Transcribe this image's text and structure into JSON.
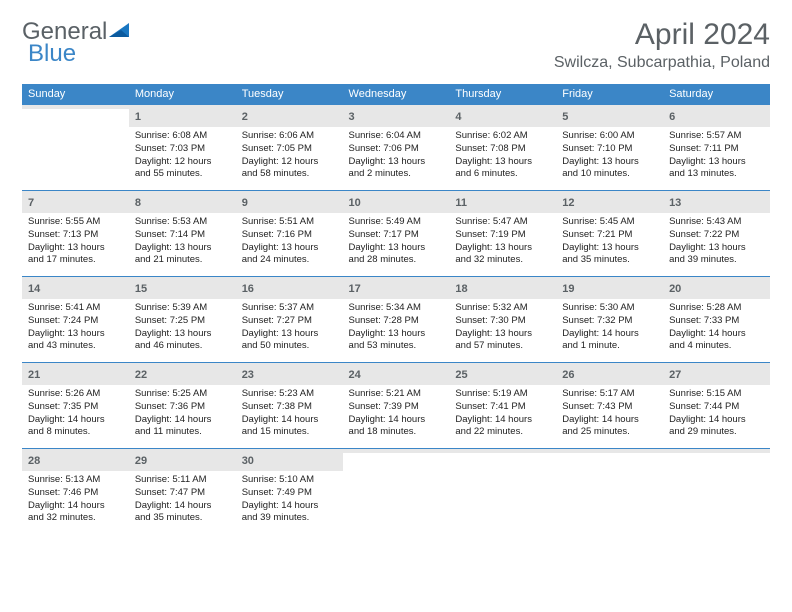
{
  "logo": {
    "text1": "General",
    "text2": "Blue"
  },
  "title": "April 2024",
  "location": "Swilcza, Subcarpathia, Poland",
  "colors": {
    "header_bg": "#3b86c7",
    "header_text": "#ffffff",
    "daynum_bg": "#e7e7e7",
    "row_border": "#3b86c7",
    "text": "#222222",
    "title_color": "#5b6165"
  },
  "weekdays": [
    "Sunday",
    "Monday",
    "Tuesday",
    "Wednesday",
    "Thursday",
    "Friday",
    "Saturday"
  ],
  "weeks": [
    [
      {
        "day": "",
        "sunrise": "",
        "sunset": "",
        "daylight": ""
      },
      {
        "day": "1",
        "sunrise": "6:08 AM",
        "sunset": "7:03 PM",
        "daylight": "12 hours and 55 minutes."
      },
      {
        "day": "2",
        "sunrise": "6:06 AM",
        "sunset": "7:05 PM",
        "daylight": "12 hours and 58 minutes."
      },
      {
        "day": "3",
        "sunrise": "6:04 AM",
        "sunset": "7:06 PM",
        "daylight": "13 hours and 2 minutes."
      },
      {
        "day": "4",
        "sunrise": "6:02 AM",
        "sunset": "7:08 PM",
        "daylight": "13 hours and 6 minutes."
      },
      {
        "day": "5",
        "sunrise": "6:00 AM",
        "sunset": "7:10 PM",
        "daylight": "13 hours and 10 minutes."
      },
      {
        "day": "6",
        "sunrise": "5:57 AM",
        "sunset": "7:11 PM",
        "daylight": "13 hours and 13 minutes."
      }
    ],
    [
      {
        "day": "7",
        "sunrise": "5:55 AM",
        "sunset": "7:13 PM",
        "daylight": "13 hours and 17 minutes."
      },
      {
        "day": "8",
        "sunrise": "5:53 AM",
        "sunset": "7:14 PM",
        "daylight": "13 hours and 21 minutes."
      },
      {
        "day": "9",
        "sunrise": "5:51 AM",
        "sunset": "7:16 PM",
        "daylight": "13 hours and 24 minutes."
      },
      {
        "day": "10",
        "sunrise": "5:49 AM",
        "sunset": "7:17 PM",
        "daylight": "13 hours and 28 minutes."
      },
      {
        "day": "11",
        "sunrise": "5:47 AM",
        "sunset": "7:19 PM",
        "daylight": "13 hours and 32 minutes."
      },
      {
        "day": "12",
        "sunrise": "5:45 AM",
        "sunset": "7:21 PM",
        "daylight": "13 hours and 35 minutes."
      },
      {
        "day": "13",
        "sunrise": "5:43 AM",
        "sunset": "7:22 PM",
        "daylight": "13 hours and 39 minutes."
      }
    ],
    [
      {
        "day": "14",
        "sunrise": "5:41 AM",
        "sunset": "7:24 PM",
        "daylight": "13 hours and 43 minutes."
      },
      {
        "day": "15",
        "sunrise": "5:39 AM",
        "sunset": "7:25 PM",
        "daylight": "13 hours and 46 minutes."
      },
      {
        "day": "16",
        "sunrise": "5:37 AM",
        "sunset": "7:27 PM",
        "daylight": "13 hours and 50 minutes."
      },
      {
        "day": "17",
        "sunrise": "5:34 AM",
        "sunset": "7:28 PM",
        "daylight": "13 hours and 53 minutes."
      },
      {
        "day": "18",
        "sunrise": "5:32 AM",
        "sunset": "7:30 PM",
        "daylight": "13 hours and 57 minutes."
      },
      {
        "day": "19",
        "sunrise": "5:30 AM",
        "sunset": "7:32 PM",
        "daylight": "14 hours and 1 minute."
      },
      {
        "day": "20",
        "sunrise": "5:28 AM",
        "sunset": "7:33 PM",
        "daylight": "14 hours and 4 minutes."
      }
    ],
    [
      {
        "day": "21",
        "sunrise": "5:26 AM",
        "sunset": "7:35 PM",
        "daylight": "14 hours and 8 minutes."
      },
      {
        "day": "22",
        "sunrise": "5:25 AM",
        "sunset": "7:36 PM",
        "daylight": "14 hours and 11 minutes."
      },
      {
        "day": "23",
        "sunrise": "5:23 AM",
        "sunset": "7:38 PM",
        "daylight": "14 hours and 15 minutes."
      },
      {
        "day": "24",
        "sunrise": "5:21 AM",
        "sunset": "7:39 PM",
        "daylight": "14 hours and 18 minutes."
      },
      {
        "day": "25",
        "sunrise": "5:19 AM",
        "sunset": "7:41 PM",
        "daylight": "14 hours and 22 minutes."
      },
      {
        "day": "26",
        "sunrise": "5:17 AM",
        "sunset": "7:43 PM",
        "daylight": "14 hours and 25 minutes."
      },
      {
        "day": "27",
        "sunrise": "5:15 AM",
        "sunset": "7:44 PM",
        "daylight": "14 hours and 29 minutes."
      }
    ],
    [
      {
        "day": "28",
        "sunrise": "5:13 AM",
        "sunset": "7:46 PM",
        "daylight": "14 hours and 32 minutes."
      },
      {
        "day": "29",
        "sunrise": "5:11 AM",
        "sunset": "7:47 PM",
        "daylight": "14 hours and 35 minutes."
      },
      {
        "day": "30",
        "sunrise": "5:10 AM",
        "sunset": "7:49 PM",
        "daylight": "14 hours and 39 minutes."
      },
      {
        "day": "",
        "sunrise": "",
        "sunset": "",
        "daylight": ""
      },
      {
        "day": "",
        "sunrise": "",
        "sunset": "",
        "daylight": ""
      },
      {
        "day": "",
        "sunrise": "",
        "sunset": "",
        "daylight": ""
      },
      {
        "day": "",
        "sunrise": "",
        "sunset": "",
        "daylight": ""
      }
    ]
  ]
}
